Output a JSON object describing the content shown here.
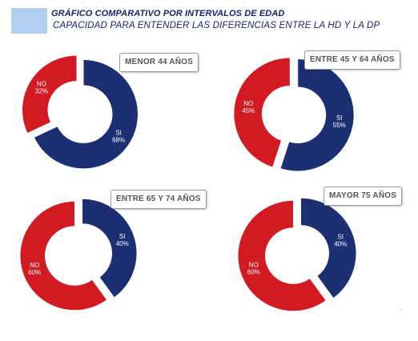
{
  "title": "GRÁFICO COMPARATIVO POR INTERVALOS DE EDAD",
  "subtitle": "CAPACIDAD PARA ENTENDER LAS DIFERENCIAS ENTRE LA HD Y LA DP",
  "colors": {
    "title": "#1a2170",
    "accent_box": "#b0cff0",
    "si": "#1c2f72",
    "no": "#d21a23",
    "label_text": "#ffffff",
    "panel_label_text": "#555555"
  },
  "chart_data": [
    {
      "type": "pie",
      "style": "donut",
      "title": "MENOR 44 AÑOS",
      "slices": [
        {
          "label": "SI",
          "value": 68,
          "value_text": "68%"
        },
        {
          "label": "NO",
          "value": 32,
          "value_text": "32%"
        }
      ]
    },
    {
      "type": "pie",
      "style": "donut",
      "title": "ENTRE 45 Y 64 AÑOS",
      "slices": [
        {
          "label": "SI",
          "value": 55,
          "value_text": "55%"
        },
        {
          "label": "NO",
          "value": 45,
          "value_text": "45%"
        }
      ]
    },
    {
      "type": "pie",
      "style": "donut",
      "title": "ENTRE 65 Y 74 AÑOS",
      "slices": [
        {
          "label": "SI",
          "value": 40,
          "value_text": "40%"
        },
        {
          "label": "NO",
          "value": 60,
          "value_text": "60%"
        }
      ]
    },
    {
      "type": "pie",
      "style": "donut",
      "title": "MAYOR  75 AÑOS",
      "slices": [
        {
          "label": "SI",
          "value": 40,
          "value_text": "40%"
        },
        {
          "label": "NO",
          "value": 60,
          "value_text": "60%"
        }
      ]
    }
  ]
}
